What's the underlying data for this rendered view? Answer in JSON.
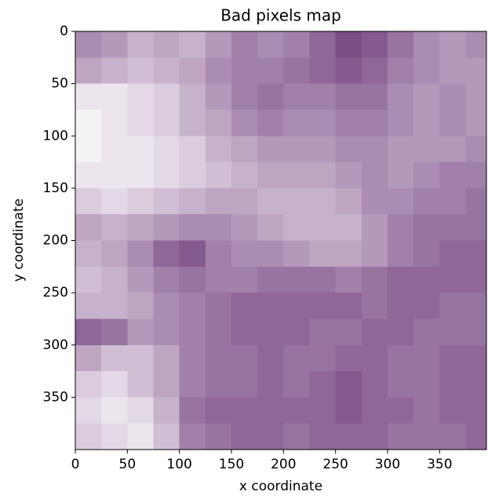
{
  "chart_data": {
    "type": "heatmap",
    "title": "Bad pixels map",
    "x_label": "x coordinate",
    "y_label": "y coordinate",
    "color": "#440154",
    "background": "#ffffff",
    "x_edges": [
      0,
      25,
      50,
      75,
      100,
      125,
      150,
      175,
      200,
      225,
      250,
      275,
      300,
      325,
      350,
      375,
      395
    ],
    "y_edges": [
      0,
      25,
      50,
      75,
      100,
      125,
      150,
      175,
      200,
      225,
      250,
      275,
      300,
      325,
      350,
      375,
      400
    ],
    "values": [
      [
        0.45,
        0.4,
        0.3,
        0.35,
        0.3,
        0.4,
        0.5,
        0.45,
        0.5,
        0.6,
        0.7,
        0.65,
        0.55,
        0.45,
        0.4,
        0.45
      ],
      [
        0.35,
        0.3,
        0.25,
        0.3,
        0.35,
        0.45,
        0.5,
        0.5,
        0.55,
        0.6,
        0.65,
        0.6,
        0.5,
        0.45,
        0.4,
        0.4
      ],
      [
        0.1,
        0.1,
        0.15,
        0.2,
        0.3,
        0.4,
        0.5,
        0.55,
        0.5,
        0.5,
        0.55,
        0.55,
        0.45,
        0.4,
        0.45,
        0.4
      ],
      [
        0.05,
        0.1,
        0.15,
        0.2,
        0.3,
        0.35,
        0.45,
        0.5,
        0.45,
        0.45,
        0.5,
        0.5,
        0.45,
        0.4,
        0.45,
        0.4
      ],
      [
        0.05,
        0.1,
        0.1,
        0.15,
        0.2,
        0.3,
        0.35,
        0.4,
        0.4,
        0.4,
        0.45,
        0.45,
        0.4,
        0.4,
        0.4,
        0.45
      ],
      [
        0.1,
        0.1,
        0.1,
        0.15,
        0.2,
        0.25,
        0.3,
        0.35,
        0.35,
        0.35,
        0.4,
        0.45,
        0.4,
        0.45,
        0.5,
        0.5
      ],
      [
        0.2,
        0.15,
        0.2,
        0.25,
        0.3,
        0.35,
        0.35,
        0.3,
        0.3,
        0.3,
        0.35,
        0.45,
        0.45,
        0.5,
        0.5,
        0.55
      ],
      [
        0.35,
        0.3,
        0.35,
        0.4,
        0.45,
        0.45,
        0.4,
        0.35,
        0.3,
        0.3,
        0.3,
        0.4,
        0.5,
        0.55,
        0.55,
        0.55
      ],
      [
        0.3,
        0.35,
        0.45,
        0.6,
        0.65,
        0.5,
        0.45,
        0.45,
        0.4,
        0.35,
        0.35,
        0.4,
        0.5,
        0.55,
        0.6,
        0.6
      ],
      [
        0.25,
        0.3,
        0.4,
        0.5,
        0.55,
        0.5,
        0.5,
        0.55,
        0.55,
        0.55,
        0.5,
        0.55,
        0.6,
        0.6,
        0.6,
        0.6
      ],
      [
        0.3,
        0.3,
        0.35,
        0.45,
        0.5,
        0.55,
        0.6,
        0.6,
        0.6,
        0.6,
        0.6,
        0.55,
        0.6,
        0.6,
        0.55,
        0.55
      ],
      [
        0.6,
        0.55,
        0.4,
        0.45,
        0.5,
        0.55,
        0.6,
        0.6,
        0.6,
        0.55,
        0.55,
        0.6,
        0.6,
        0.55,
        0.55,
        0.55
      ],
      [
        0.35,
        0.25,
        0.25,
        0.35,
        0.5,
        0.55,
        0.55,
        0.6,
        0.55,
        0.55,
        0.6,
        0.6,
        0.55,
        0.55,
        0.6,
        0.6
      ],
      [
        0.2,
        0.15,
        0.25,
        0.35,
        0.5,
        0.55,
        0.55,
        0.6,
        0.55,
        0.6,
        0.65,
        0.6,
        0.55,
        0.55,
        0.6,
        0.6
      ],
      [
        0.15,
        0.1,
        0.15,
        0.3,
        0.55,
        0.6,
        0.6,
        0.6,
        0.6,
        0.6,
        0.65,
        0.6,
        0.6,
        0.55,
        0.6,
        0.6
      ],
      [
        0.2,
        0.15,
        0.1,
        0.25,
        0.5,
        0.55,
        0.6,
        0.6,
        0.55,
        0.6,
        0.6,
        0.6,
        0.55,
        0.55,
        0.55,
        0.6
      ]
    ],
    "xlim": [
      0,
      395
    ],
    "ylim": [
      400,
      0
    ],
    "xticks": [
      0,
      50,
      100,
      150,
      200,
      250,
      300,
      350
    ],
    "yticks": [
      0,
      50,
      100,
      150,
      200,
      250,
      300,
      350
    ]
  }
}
